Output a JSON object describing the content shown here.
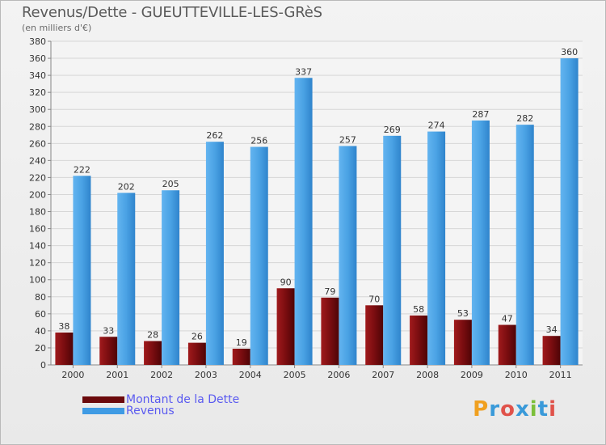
{
  "title": "Revenus/Dette - GUEUTTEVILLE-LES-GRèS",
  "subtitle": "(en milliers d'€)",
  "brand": {
    "text": "Proxiti"
  },
  "colors": {
    "dette": "#7a0f12",
    "revenus": "#4ea3e6",
    "grid": "#d6d6d6"
  },
  "legend": [
    {
      "label": "Montant de la Dette",
      "color": "#6b0a0c"
    },
    {
      "label": "Revenus",
      "color": "#3f9be4"
    }
  ],
  "chart_data": {
    "type": "bar",
    "title": "Revenus/Dette - GUEUTTEVILLE-LES-GRèS",
    "ylabel": "(en milliers d'€)",
    "categories": [
      "2000",
      "2001",
      "2002",
      "2003",
      "2004",
      "2005",
      "2006",
      "2007",
      "2008",
      "2009",
      "2010",
      "2011"
    ],
    "series": [
      {
        "name": "Montant de la Dette",
        "values": [
          38,
          33,
          28,
          26,
          19,
          90,
          79,
          70,
          58,
          53,
          47,
          34
        ]
      },
      {
        "name": "Revenus",
        "values": [
          222,
          202,
          205,
          262,
          256,
          337,
          257,
          269,
          274,
          287,
          282,
          360
        ]
      }
    ],
    "ylim": [
      0,
      380
    ],
    "yticks": [
      0,
      20,
      40,
      60,
      80,
      100,
      120,
      140,
      160,
      180,
      200,
      220,
      240,
      260,
      280,
      300,
      320,
      340,
      360,
      380
    ],
    "grid": true
  }
}
